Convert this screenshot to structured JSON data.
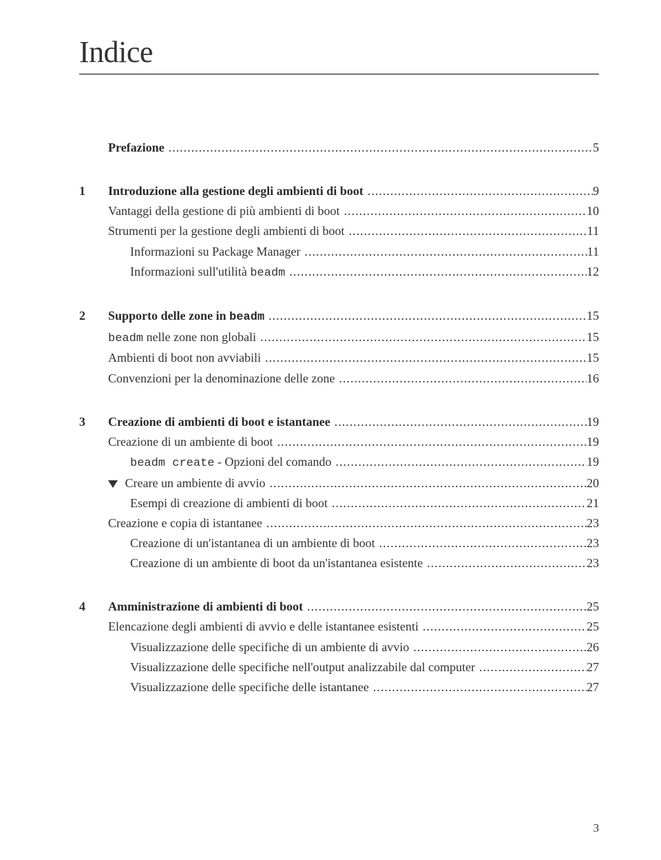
{
  "title": "Indice",
  "leaders": ".............................................................................................................................................................................................",
  "entries": [
    {
      "type": "plain-bold",
      "label": "Prefazione",
      "page": "5",
      "indent": 1
    },
    {
      "type": "chapter",
      "num": "1",
      "label": "Introduzione alla gestione degli ambienti di boot",
      "page": "9",
      "gap": true
    },
    {
      "type": "plain",
      "label": "Vantaggi della gestione di più ambienti di boot",
      "page": "10",
      "indent": 1
    },
    {
      "type": "plain",
      "label": "Strumenti per la gestione degli ambienti di boot",
      "page": "11",
      "indent": 1
    },
    {
      "type": "plain",
      "label": "Informazioni su Package Manager",
      "page": "11",
      "indent": 2
    },
    {
      "type": "beadm-suffix",
      "prefix": "Informazioni sull'utilità ",
      "mono": "beadm",
      "page": "12",
      "indent": 2
    },
    {
      "type": "chapter-beadm-suffix",
      "num": "2",
      "prefix": "Supporto delle zone in ",
      "mono": "beadm",
      "page": "15",
      "gap": true
    },
    {
      "type": "beadm-prefix",
      "mono": "beadm",
      "suffix": " nelle zone non globali",
      "page": "15",
      "indent": 1
    },
    {
      "type": "plain",
      "label": "Ambienti di boot non avviabili",
      "page": "15",
      "indent": 1
    },
    {
      "type": "plain",
      "label": "Convenzioni per la denominazione delle zone",
      "page": "16",
      "indent": 1
    },
    {
      "type": "chapter",
      "num": "3",
      "label": "Creazione di ambienti di boot e istantanee",
      "page": "19",
      "gap": true
    },
    {
      "type": "plain",
      "label": "Creazione di un ambiente di boot",
      "page": "19",
      "indent": 1
    },
    {
      "type": "beadm-create",
      "mono": "beadm create",
      "suffix": " - Opzioni del comando",
      "page": "19",
      "indent": 2
    },
    {
      "type": "caret",
      "label": "Creare un ambiente di avvio",
      "page": "20",
      "indent": 1
    },
    {
      "type": "plain",
      "label": "Esempi di creazione di ambienti di boot",
      "page": "21",
      "indent": 2
    },
    {
      "type": "plain",
      "label": "Creazione e copia di istantanee",
      "page": "23",
      "indent": 1
    },
    {
      "type": "plain",
      "label": "Creazione di un'istantanea di un ambiente di boot",
      "page": "23",
      "indent": 2
    },
    {
      "type": "plain",
      "label": "Creazione di un ambiente di boot da un'istantanea esistente",
      "page": "23",
      "indent": 2
    },
    {
      "type": "chapter",
      "num": "4",
      "label": "Amministrazione di ambienti di boot",
      "page": "25",
      "gap": true
    },
    {
      "type": "plain",
      "label": "Elencazione degli ambienti di avvio e delle istantanee esistenti",
      "page": "25",
      "indent": 1
    },
    {
      "type": "plain",
      "label": "Visualizzazione delle specifiche di un ambiente di avvio",
      "page": "26",
      "indent": 2
    },
    {
      "type": "plain",
      "label": "Visualizzazione delle specifiche nell'output analizzabile dal computer",
      "page": "27",
      "indent": 2
    },
    {
      "type": "plain",
      "label": "Visualizzazione delle specifiche delle istantanee",
      "page": "27",
      "indent": 2
    }
  ],
  "footer_page": "3"
}
